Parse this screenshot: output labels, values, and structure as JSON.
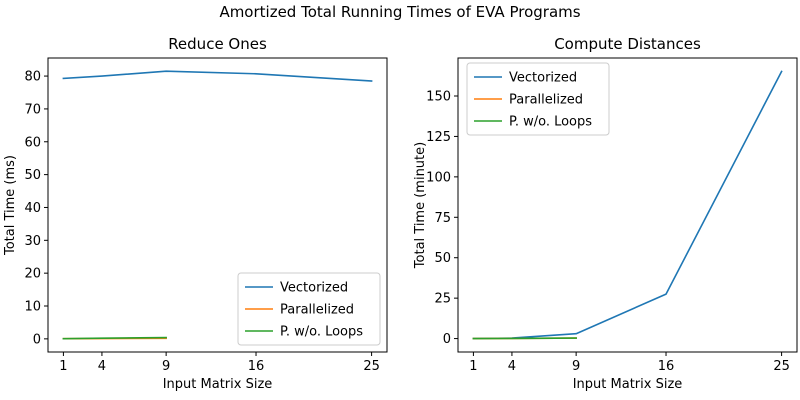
{
  "figure": {
    "suptitle": "Amortized Total Running Times of EVA Programs"
  },
  "chart_data": [
    {
      "type": "line",
      "title": "Reduce Ones",
      "xlabel": "Input Matrix Size",
      "ylabel": "Total Time (ms)",
      "xticks": [
        1,
        4,
        9,
        16,
        25
      ],
      "yticks": [
        0,
        10,
        20,
        30,
        40,
        50,
        60,
        70,
        80
      ],
      "xlim": [
        -0.2,
        26.2
      ],
      "ylim": [
        -4.0,
        85.5
      ],
      "grid": false,
      "legend_position": "lower-right",
      "series": [
        {
          "name": "Vectorized",
          "color": "#1f77b4",
          "x": [
            1,
            4,
            9,
            16,
            25
          ],
          "y": [
            79.3,
            80.0,
            81.5,
            80.7,
            78.5
          ]
        },
        {
          "name": "Parallelized",
          "color": "#ff7f0e",
          "x": [
            1,
            4,
            9
          ],
          "y": [
            0.05,
            0.1,
            0.15
          ]
        },
        {
          "name": "P. w/o. Loops",
          "color": "#2ca02c",
          "x": [
            1,
            4,
            9
          ],
          "y": [
            0.05,
            0.2,
            0.4
          ]
        }
      ]
    },
    {
      "type": "line",
      "title": "Compute Distances",
      "xlabel": "Input Matrix Size",
      "ylabel": "Total Time (minute)",
      "xticks": [
        1,
        4,
        9,
        16,
        25
      ],
      "yticks": [
        0,
        25,
        50,
        75,
        100,
        125,
        150
      ],
      "xlim": [
        -0.2,
        26.2
      ],
      "ylim": [
        -8.3,
        173.5
      ],
      "grid": false,
      "legend_position": "upper-left",
      "series": [
        {
          "name": "Vectorized",
          "color": "#1f77b4",
          "x": [
            1,
            4,
            9,
            16,
            25
          ],
          "y": [
            0.05,
            0.3,
            3.0,
            27.5,
            165.2
          ]
        },
        {
          "name": "Parallelized",
          "color": "#ff7f0e",
          "x": [
            1,
            4,
            9
          ],
          "y": [
            0.02,
            0.1,
            0.3
          ]
        },
        {
          "name": "P. w/o. Loops",
          "color": "#2ca02c",
          "x": [
            1,
            4,
            9
          ],
          "y": [
            0.02,
            0.1,
            0.3
          ]
        }
      ]
    }
  ]
}
